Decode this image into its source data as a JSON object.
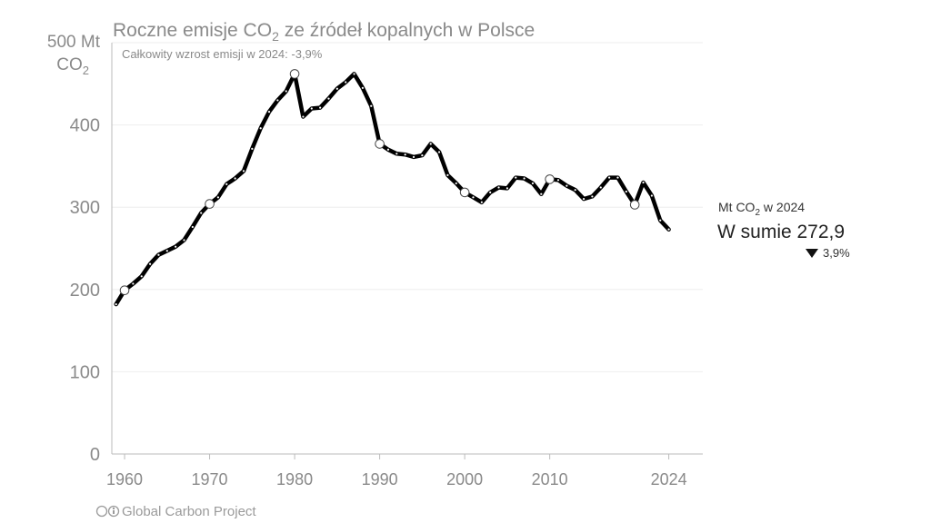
{
  "title_main": "Roczne emisje CO",
  "title_sub2": "2",
  "title_rest": " ze źródeł kopalnych w Polsce",
  "subtitle": "Całkowity wzrost emisji w 2024: -3,9%",
  "y_unit_line1": "500 Mt",
  "y_unit_line2": "CO",
  "y_unit_sub": "2",
  "annotation": {
    "label_prefix": "Mt CO",
    "label_sub": "2",
    "label_suffix": " w 2024",
    "total": "W sumie 272,9",
    "change_icon": "triangle-down",
    "change": "3,9%"
  },
  "footer": "Global Carbon Project",
  "footer_icon": "cc-by-icon",
  "colors": {
    "line": "#000000",
    "grid": "#eeeeee",
    "axis": "#bbbbbb",
    "text": "#8a8a8a"
  },
  "chart_data": {
    "type": "line",
    "title": "Roczne emisje CO2 ze źródeł kopalnych w Polsce",
    "ylabel": "Mt CO2",
    "ylim": [
      0,
      500
    ],
    "yticks": [
      0,
      100,
      200,
      300,
      400
    ],
    "xlim": [
      1958.5,
      2028
    ],
    "xticks": [
      1960,
      1970,
      1980,
      1990,
      2000,
      2010,
      2024
    ],
    "grid": "horizontal",
    "series": [
      {
        "x": [
          1959,
          1960,
          1961,
          1962,
          1963,
          1964,
          1965,
          1966,
          1967,
          1968,
          1969,
          1970,
          1971,
          1972,
          1973,
          1974,
          1975,
          1976,
          1977,
          1978,
          1979,
          1980,
          1981,
          1982,
          1983,
          1984,
          1985,
          1986,
          1987,
          1988,
          1989,
          1990,
          1991,
          1992,
          1993,
          1994,
          1995,
          1996,
          1997,
          1998,
          1999,
          2000,
          2001,
          2002,
          2003,
          2004,
          2005,
          2006,
          2007,
          2008,
          2009,
          2010,
          2011,
          2012,
          2013,
          2014,
          2015,
          2016,
          2017,
          2018,
          2019,
          2020,
          2021,
          2022,
          2023,
          2024
        ],
        "values": [
          182,
          199,
          207,
          216,
          231,
          242,
          247,
          252,
          260,
          276,
          293,
          304,
          312,
          328,
          335,
          344,
          371,
          396,
          416,
          430,
          441,
          462,
          410,
          420,
          421,
          432,
          444,
          452,
          462,
          445,
          423,
          377,
          370,
          365,
          364,
          361,
          363,
          377,
          367,
          339,
          329,
          318,
          312,
          306,
          318,
          324,
          323,
          336,
          335,
          329,
          316,
          334,
          333,
          326,
          321,
          310,
          313,
          324,
          336,
          336,
          319,
          303,
          330,
          314,
          284,
          273
        ]
      }
    ],
    "highlighted_years": [
      1960,
      1970,
      1980,
      1990,
      2000,
      2010,
      2020
    ],
    "annotations": [
      "Mt CO2 w 2024",
      "W sumie 272,9",
      "3,9%"
    ]
  }
}
